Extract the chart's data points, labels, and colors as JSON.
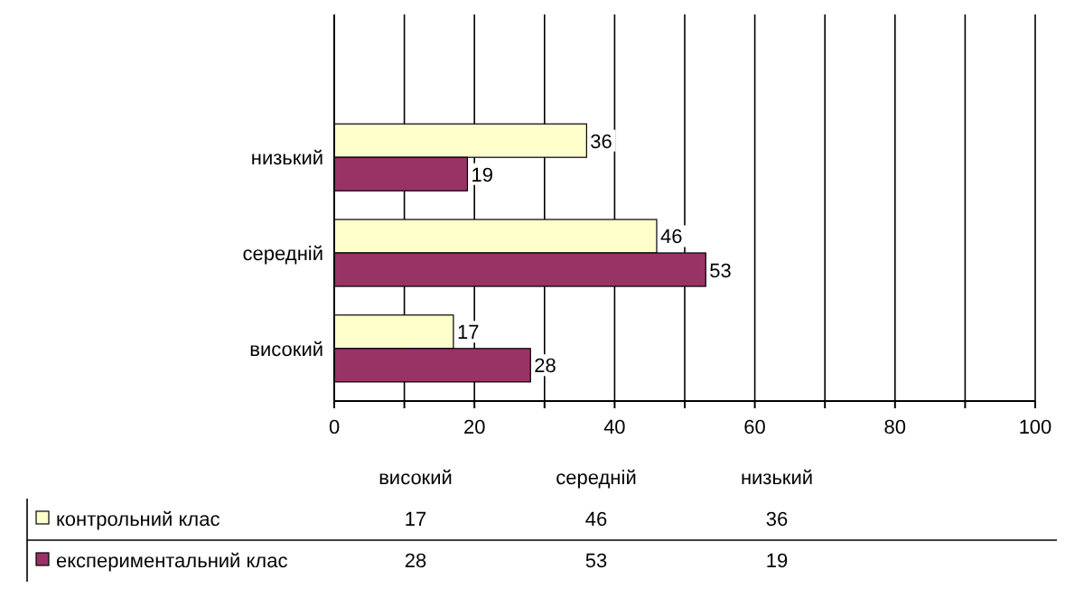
{
  "chart_data": [
    {
      "type": "bar",
      "orientation": "horizontal",
      "categories": [
        "низький",
        "середній",
        "високий"
      ],
      "series": [
        {
          "color": "#ffffcc",
          "values": [
            36,
            46,
            17
          ]
        },
        {
          "color": "#993366",
          "values": [
            19,
            53,
            28
          ]
        }
      ],
      "xlim": [
        0,
        100
      ],
      "xticks": [
        0,
        {
          "value": 10,
          "label": null
        },
        20,
        {
          "value": 30,
          "label": null
        },
        40,
        {
          "value": 50,
          "label": null
        },
        60,
        {
          "value": 70,
          "label": null
        },
        80,
        {
          "value": 90,
          "label": null
        },
        100
      ],
      "grid": "x",
      "data_labels": true
    },
    {
      "type": "other",
      "categories": [
        "високий",
        "середній",
        "низький"
      ],
      "series": [
        {
          "name": "контрольний клас",
          "color": "#ffffcc",
          "values": [
            17,
            46,
            36
          ]
        },
        {
          "name": "експериментальний клас",
          "color": "#993366",
          "values": [
            28,
            53,
            19
          ]
        }
      ],
      "data_labels": true,
      "legend": "left"
    }
  ]
}
